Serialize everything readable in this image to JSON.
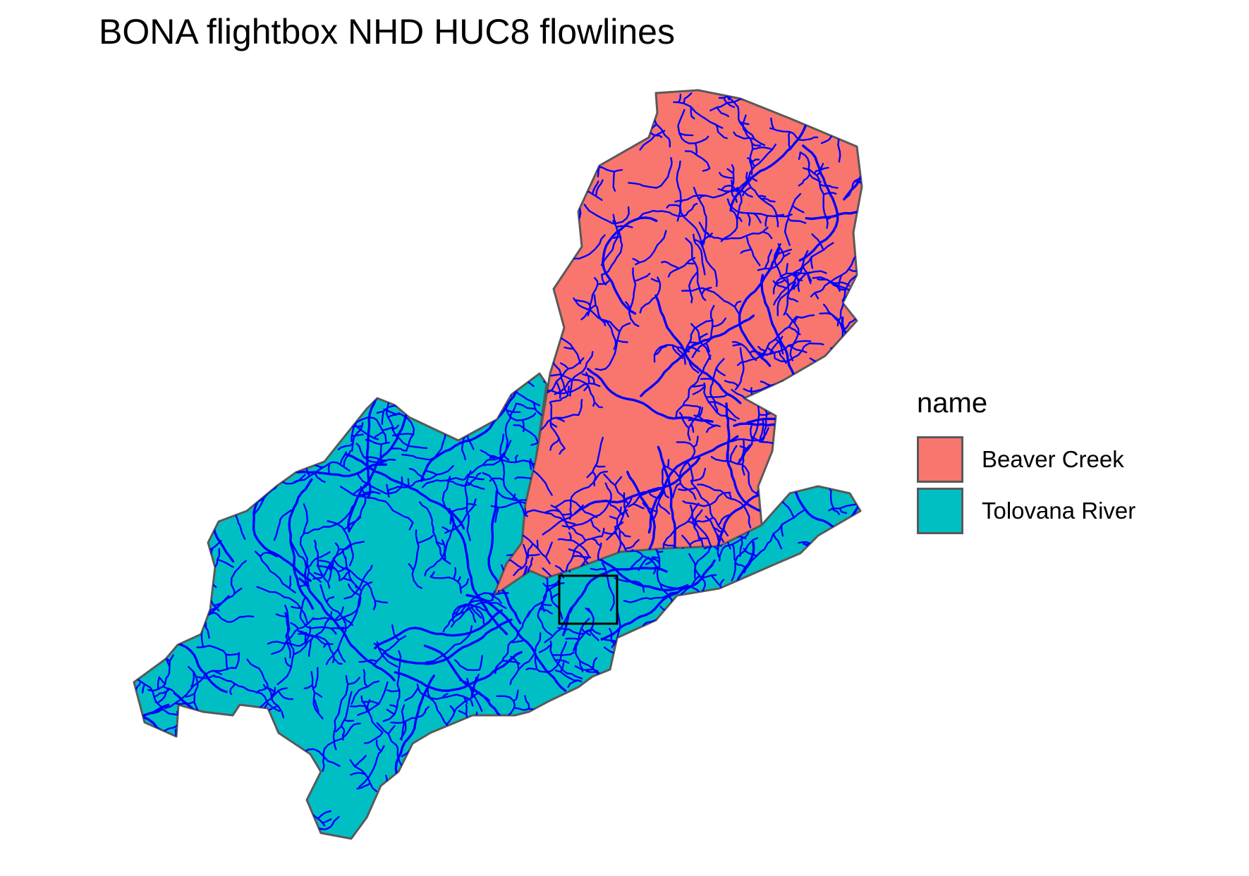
{
  "title": "BONA flightbox NHD HUC8 flowlines",
  "legend": {
    "title": "name",
    "entries": [
      {
        "label": "Beaver Creek",
        "color": "#F8766D"
      },
      {
        "label": "Tolovana River",
        "color": "#00BFC4"
      }
    ]
  },
  "colors": {
    "flowline": "#0000FF",
    "boundary": "#595959",
    "flightbox": "#000000"
  },
  "layers": [
    "huc8-polygons",
    "nhd-flowlines",
    "flightbox"
  ]
}
